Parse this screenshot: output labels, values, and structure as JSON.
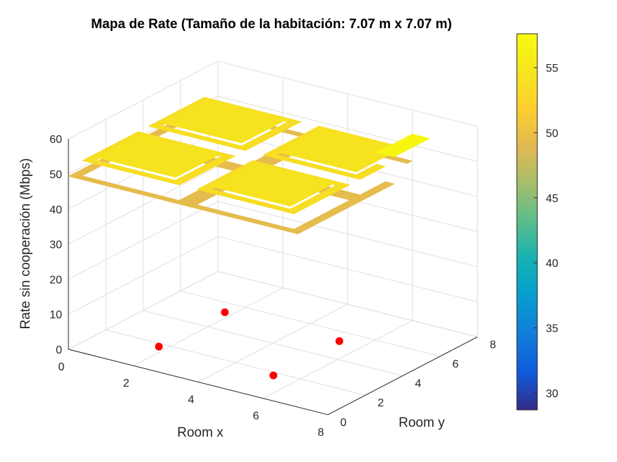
{
  "chart_data": {
    "type": "surface",
    "title": "Mapa de Rate (Tamaño de la habitación: 7.07 m x 7.07 m)",
    "xlabel": "Room x",
    "ylabel": "Room y",
    "zlabel": "Rate sin cooperación (Mbps)",
    "xlim": [
      0,
      8
    ],
    "ylim": [
      0,
      8
    ],
    "zlim": [
      0,
      60
    ],
    "x_ticks": [
      "0",
      "2",
      "4",
      "6",
      "8"
    ],
    "y_ticks": [
      "0",
      "2",
      "4",
      "6",
      "8"
    ],
    "z_ticks": [
      "0",
      "10",
      "20",
      "30",
      "40",
      "50",
      "60"
    ],
    "grid": true,
    "room_size": [
      7.07,
      7.07
    ],
    "surface_rate_range": [
      28.7,
      57.6
    ],
    "access_points": [
      {
        "x": 1.77,
        "y": 1.77,
        "z": 0
      },
      {
        "x": 5.3,
        "y": 1.77,
        "z": 0
      },
      {
        "x": 1.77,
        "y": 5.3,
        "z": 0
      },
      {
        "x": 5.3,
        "y": 5.3,
        "z": 0
      }
    ],
    "access_point_color": "#ff0000",
    "colorbar": {
      "colormap": "parula",
      "limits": [
        28.7,
        57.6
      ],
      "ticks": [
        "30",
        "35",
        "40",
        "45",
        "50",
        "55"
      ],
      "location": "right"
    }
  }
}
